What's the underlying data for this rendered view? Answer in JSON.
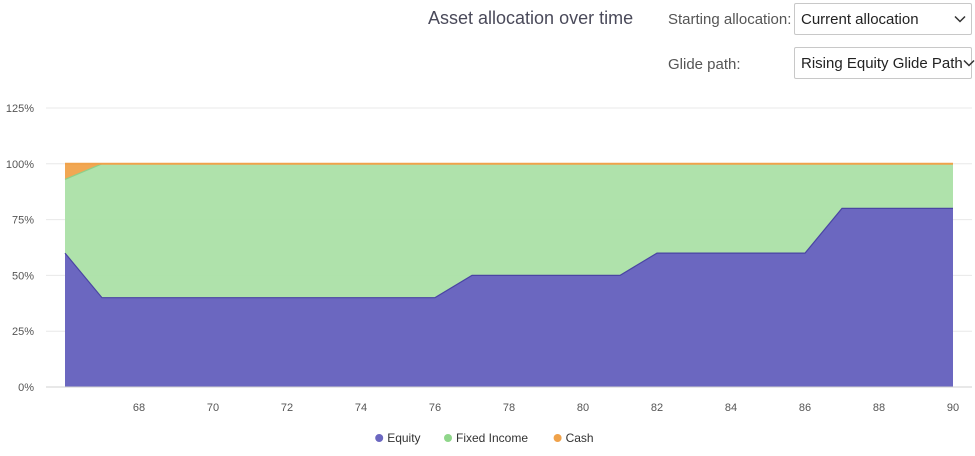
{
  "header": {
    "title": "Asset allocation over time",
    "starting_allocation_label": "Starting allocation:",
    "starting_allocation_value": "Current allocation",
    "glide_path_label": "Glide path:",
    "glide_path_value": "Rising Equity Glide Path"
  },
  "colors": {
    "equity": "#6b67c0",
    "fixed_income": "#abe0a7",
    "cash": "#f0a24a",
    "equity_line": "#4a45a3",
    "grid": "#e8e8e8"
  },
  "chart_data": {
    "type": "area",
    "stacked": true,
    "title": "Asset allocation over time",
    "xlabel": "",
    "ylabel": "",
    "x": [
      66,
      67,
      68,
      69,
      70,
      71,
      72,
      73,
      74,
      75,
      76,
      77,
      78,
      79,
      80,
      81,
      82,
      83,
      84,
      85,
      86,
      87,
      88,
      89,
      90
    ],
    "xlim": [
      66,
      90
    ],
    "ylim": [
      0,
      125
    ],
    "x_ticks": [
      "68",
      "70",
      "72",
      "74",
      "76",
      "78",
      "80",
      "82",
      "84",
      "86",
      "88",
      "90"
    ],
    "y_ticks": [
      "0%",
      "25%",
      "50%",
      "75%",
      "100%",
      "125%"
    ],
    "y_tick_values": [
      0,
      25,
      50,
      75,
      100,
      125
    ],
    "series": [
      {
        "name": "Equity",
        "values": [
          60,
          40,
          40,
          40,
          40,
          40,
          40,
          40,
          40,
          40,
          40,
          50,
          50,
          50,
          50,
          50,
          60,
          60,
          60,
          60,
          60,
          80,
          80,
          80,
          80
        ]
      },
      {
        "name": "Fixed Income",
        "values": [
          33,
          60,
          60,
          60,
          60,
          60,
          60,
          60,
          60,
          60,
          60,
          50,
          50,
          50,
          50,
          50,
          40,
          40,
          40,
          40,
          40,
          20,
          20,
          20,
          20
        ]
      },
      {
        "name": "Cash",
        "values": [
          7,
          0,
          0,
          0,
          0,
          0,
          0,
          0,
          0,
          0,
          0,
          0,
          0,
          0,
          0,
          0,
          0,
          0,
          0,
          0,
          0,
          0,
          0,
          0,
          0
        ]
      }
    ],
    "legend": [
      "Equity",
      "Fixed Income",
      "Cash"
    ],
    "legend_position": "bottom-center",
    "grid": true
  }
}
